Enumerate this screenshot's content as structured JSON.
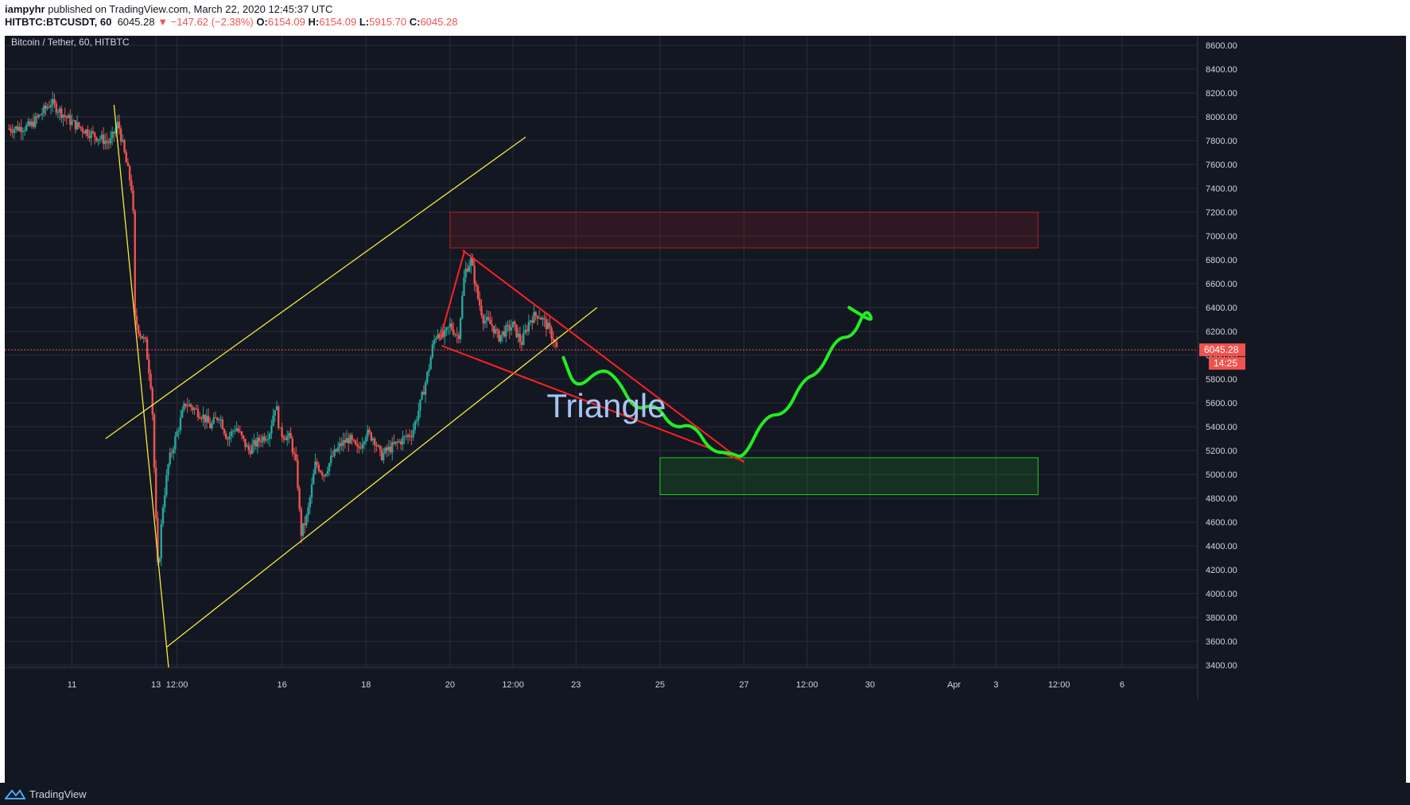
{
  "header": {
    "line1_user": "iampyhr",
    "line1_rest": " published on TradingView.com, March 22, 2020 12:45:37 UTC",
    "symbol": "HITBTC:BTCUSDT, 60",
    "last": "6045.28",
    "change": "▼ −147.62 (−2.38%)",
    "o_label": "O:",
    "o_val": "6154.09",
    "h_label": "H:",
    "h_val": "6154.09",
    "l_label": "L:",
    "l_val": "5915.70",
    "c_label": "C:",
    "c_val": "6045.28"
  },
  "legend_title": "Bitcoin / Tether, 60, HITBTC",
  "annotation_text": "Triangle",
  "footer_brand": "TradingView",
  "price_tag": {
    "price": "6045.28",
    "countdown": "14:25"
  },
  "colors": {
    "background": "#131722",
    "grid": "#2a2e39",
    "up": "#26a69a",
    "down": "#ef5350",
    "trendline_yellow": "#f5eb3b",
    "trendline_red": "#ff2121",
    "projection_green": "#22ee22",
    "text": "#d1d4dc"
  },
  "chart_data": {
    "type": "candlestick",
    "title": "Bitcoin / Tether, 60, HITBTC",
    "ylim": [
      3380,
      8680
    ],
    "y_ticks": [
      3400,
      3600,
      3800,
      4000,
      4200,
      4400,
      4600,
      4800,
      5000,
      5200,
      5400,
      5600,
      5800,
      6000,
      6200,
      6400,
      6600,
      6800,
      7000,
      7200,
      7400,
      7600,
      7800,
      8000,
      8200,
      8400,
      8600
    ],
    "y_tick_labels": [
      "3400.00",
      "3600.00",
      "3800.00",
      "4000.00",
      "4200.00",
      "4400.00",
      "4600.00",
      "4800.00",
      "5000.00",
      "5200.00",
      "5400.00",
      "5600.00",
      "5800.00",
      "6000.00",
      "6200.00",
      "6400.00",
      "6600.00",
      "6800.00",
      "7000.00",
      "7200.00",
      "7400.00",
      "7600.00",
      "7800.00",
      "8000.00",
      "8200.00",
      "8400.00",
      "8600.00"
    ],
    "x_range_days": [
      9.4,
      37.8
    ],
    "x_ticks": [
      {
        "label": "11",
        "day": 11
      },
      {
        "label": "13",
        "day": 13
      },
      {
        "label": "12:00",
        "day": 13.5
      },
      {
        "label": "16",
        "day": 16
      },
      {
        "label": "18",
        "day": 18
      },
      {
        "label": "20",
        "day": 20
      },
      {
        "label": "12:00",
        "day": 21.5
      },
      {
        "label": "23",
        "day": 23
      },
      {
        "label": "25",
        "day": 25
      },
      {
        "label": "27",
        "day": 27
      },
      {
        "label": "12:00",
        "day": 28.5
      },
      {
        "label": "30",
        "day": 30
      },
      {
        "label": "Apr",
        "day": 32
      },
      {
        "label": "3",
        "day": 33
      },
      {
        "label": "12:00",
        "day": 34.5
      },
      {
        "label": "6",
        "day": 36
      }
    ],
    "price_path": [
      [
        9.5,
        7900
      ],
      [
        10,
        7920
      ],
      [
        10.5,
        8120
      ],
      [
        11,
        7950
      ],
      [
        11.5,
        7850
      ],
      [
        11.9,
        7780
      ],
      [
        12.1,
        7950
      ],
      [
        12.3,
        7600
      ],
      [
        12.45,
        7350
      ],
      [
        12.5,
        6300
      ],
      [
        12.6,
        6200
      ],
      [
        12.75,
        6100
      ],
      [
        12.9,
        5700
      ],
      [
        13.0,
        4600
      ],
      [
        13.05,
        4150
      ],
      [
        13.15,
        4700
      ],
      [
        13.3,
        5100
      ],
      [
        13.5,
        5350
      ],
      [
        13.7,
        5600
      ],
      [
        13.9,
        5550
      ],
      [
        14.1,
        5500
      ],
      [
        14.3,
        5400
      ],
      [
        14.5,
        5500
      ],
      [
        14.7,
        5300
      ],
      [
        14.9,
        5400
      ],
      [
        15.2,
        5200
      ],
      [
        15.5,
        5300
      ],
      [
        15.7,
        5350
      ],
      [
        15.85,
        5600
      ],
      [
        15.95,
        5350
      ],
      [
        16.2,
        5300
      ],
      [
        16.35,
        5050
      ],
      [
        16.45,
        4500
      ],
      [
        16.6,
        4650
      ],
      [
        16.8,
        5100
      ],
      [
        17.0,
        5000
      ],
      [
        17.2,
        5150
      ],
      [
        17.4,
        5250
      ],
      [
        17.6,
        5300
      ],
      [
        17.8,
        5200
      ],
      [
        18.0,
        5350
      ],
      [
        18.2,
        5300
      ],
      [
        18.35,
        5150
      ],
      [
        18.5,
        5200
      ],
      [
        18.7,
        5250
      ],
      [
        18.9,
        5300
      ],
      [
        19.1,
        5350
      ],
      [
        19.3,
        5600
      ],
      [
        19.5,
        5900
      ],
      [
        19.6,
        6100
      ],
      [
        19.7,
        6200
      ],
      [
        19.85,
        6150
      ],
      [
        20.0,
        6250
      ],
      [
        20.2,
        6150
      ],
      [
        20.35,
        6700
      ],
      [
        20.5,
        6800
      ],
      [
        20.65,
        6500
      ],
      [
        20.8,
        6300
      ],
      [
        21.0,
        6250
      ],
      [
        21.15,
        6150
      ],
      [
        21.3,
        6200
      ],
      [
        21.5,
        6250
      ],
      [
        21.7,
        6100
      ],
      [
        21.9,
        6300
      ],
      [
        22.1,
        6350
      ],
      [
        22.3,
        6250
      ],
      [
        22.45,
        6150
      ],
      [
        22.55,
        6045.28
      ]
    ],
    "last_price": 6045.28,
    "annotations": [
      {
        "kind": "trendline",
        "color": "yellow",
        "points": [
          [
            12.0,
            8100
          ],
          [
            13.3,
            3380
          ]
        ]
      },
      {
        "kind": "trendline",
        "color": "yellow",
        "points": [
          [
            13.25,
            3550
          ],
          [
            23.5,
            6400
          ]
        ]
      },
      {
        "kind": "trendline",
        "color": "yellow",
        "points": [
          [
            11.8,
            5300
          ],
          [
            21.8,
            7830
          ]
        ]
      },
      {
        "kind": "trendline",
        "color": "red",
        "points": [
          [
            20.3,
            6880
          ],
          [
            27.0,
            5100
          ]
        ]
      },
      {
        "kind": "trendline",
        "color": "red",
        "points": [
          [
            19.8,
            6080
          ],
          [
            27.0,
            5110
          ]
        ]
      },
      {
        "kind": "trendline",
        "color": "red",
        "points": [
          [
            19.75,
            6120
          ],
          [
            20.35,
            6880
          ]
        ]
      },
      {
        "kind": "zone",
        "color": "red",
        "day_range": [
          20.0,
          34.0
        ],
        "price_range": [
          6900,
          7200
        ]
      },
      {
        "kind": "zone",
        "color": "green",
        "day_range": [
          25.0,
          34.0
        ],
        "price_range": [
          4830,
          5140
        ]
      },
      {
        "kind": "projection",
        "color": "green",
        "points": [
          [
            22.7,
            5980
          ],
          [
            23.0,
            5700
          ],
          [
            23.6,
            5900
          ],
          [
            24.0,
            5800
          ],
          [
            24.4,
            5530
          ],
          [
            24.9,
            5600
          ],
          [
            25.3,
            5380
          ],
          [
            25.8,
            5430
          ],
          [
            26.2,
            5190
          ],
          [
            26.7,
            5180
          ],
          [
            27.0,
            5130
          ],
          [
            27.5,
            5500
          ],
          [
            28.0,
            5500
          ],
          [
            28.4,
            5800
          ],
          [
            28.8,
            5850
          ],
          [
            29.2,
            6150
          ],
          [
            29.6,
            6150
          ],
          [
            29.9,
            6400
          ],
          [
            30.1,
            6270
          ],
          [
            29.5,
            6400
          ]
        ]
      },
      {
        "kind": "text",
        "text": "Triangle",
        "at": [
          22.3,
          5480
        ]
      }
    ]
  }
}
